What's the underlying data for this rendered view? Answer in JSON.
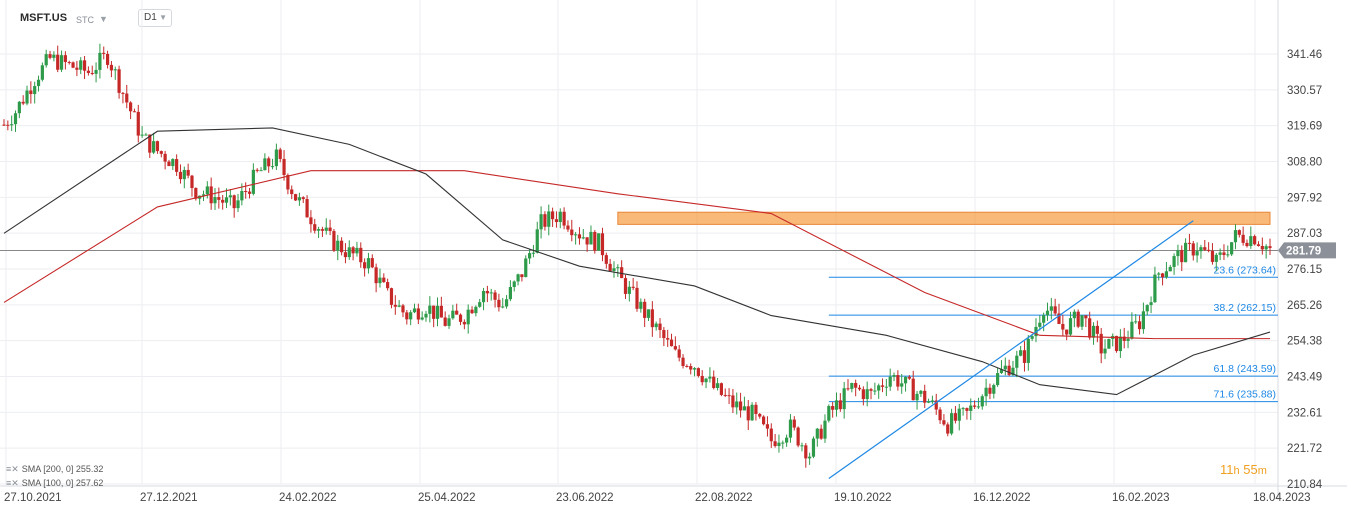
{
  "header": {
    "symbol": "MSFT.US",
    "feed": "STC",
    "timeframe": "D1"
  },
  "indicators": [
    {
      "label": "SMA [200, 0]",
      "value": "255.32",
      "color": "#c62828"
    },
    {
      "label": "SMA [100, 0]",
      "value": "257.62",
      "color": "#333333"
    }
  ],
  "timer": {
    "hours": "11",
    "h": "h",
    "minutes": "55",
    "m": "m"
  },
  "colors": {
    "up": "#2e9b4a",
    "down": "#c62828",
    "fib": "#1e88e5",
    "zone": "#f7a14b",
    "price_tag": "#8c9199"
  },
  "chart_data": {
    "type": "candlestick",
    "y_ticks": [
      "341.46",
      "330.57",
      "319.69",
      "308.80",
      "297.92",
      "287.03",
      "276.15",
      "265.26",
      "254.38",
      "243.49",
      "232.61",
      "221.72",
      "210.84"
    ],
    "x_ticks": [
      "27.10.2021",
      "27.12.2021",
      "24.02.2022",
      "25.04.2022",
      "23.06.2022",
      "22.08.2022",
      "19.10.2022",
      "16.12.2022",
      "16.02.2023",
      "18.04.2023"
    ],
    "ylim": [
      210.84,
      341.46
    ],
    "last_price": "281.79",
    "price_path": [
      [
        0,
        320
      ],
      [
        3,
        324
      ],
      [
        8,
        334
      ],
      [
        12,
        340
      ],
      [
        17,
        338
      ],
      [
        22,
        336
      ],
      [
        27,
        341
      ],
      [
        32,
        327
      ],
      [
        36,
        316
      ],
      [
        40,
        312
      ],
      [
        45,
        308
      ],
      [
        50,
        300
      ],
      [
        55,
        298
      ],
      [
        60,
        295
      ],
      [
        66,
        305
      ],
      [
        71,
        310
      ],
      [
        76,
        298
      ],
      [
        80,
        292
      ],
      [
        85,
        285
      ],
      [
        90,
        281
      ],
      [
        95,
        278
      ],
      [
        100,
        268
      ],
      [
        105,
        262
      ],
      [
        110,
        265
      ],
      [
        115,
        260
      ],
      [
        120,
        262
      ],
      [
        125,
        270
      ],
      [
        130,
        265
      ],
      [
        135,
        275
      ],
      [
        140,
        290
      ],
      [
        145,
        293
      ],
      [
        150,
        287
      ],
      [
        155,
        284
      ],
      [
        160,
        274
      ],
      [
        165,
        266
      ],
      [
        170,
        258
      ],
      [
        175,
        250
      ],
      [
        180,
        247
      ],
      [
        185,
        240
      ],
      [
        190,
        235
      ],
      [
        195,
        232
      ],
      [
        200,
        224
      ],
      [
        205,
        228
      ],
      [
        210,
        220
      ],
      [
        215,
        232
      ],
      [
        221,
        240
      ],
      [
        226,
        238
      ],
      [
        231,
        244
      ],
      [
        236,
        240
      ],
      [
        241,
        236
      ],
      [
        246,
        229
      ],
      [
        251,
        232
      ],
      [
        256,
        240
      ],
      [
        261,
        246
      ],
      [
        266,
        250
      ],
      [
        271,
        265
      ],
      [
        276,
        258
      ],
      [
        281,
        262
      ],
      [
        286,
        252
      ],
      [
        291,
        254
      ],
      [
        296,
        260
      ],
      [
        301,
        275
      ],
      [
        306,
        280
      ],
      [
        311,
        283
      ],
      [
        316,
        278
      ],
      [
        321,
        286
      ],
      [
        326,
        286
      ],
      [
        330,
        282
      ]
    ],
    "sma200": [
      [
        0,
        266
      ],
      [
        40,
        295
      ],
      [
        80,
        306
      ],
      [
        120,
        306
      ],
      [
        160,
        299
      ],
      [
        200,
        293
      ],
      [
        240,
        269
      ],
      [
        270,
        256
      ],
      [
        300,
        255
      ],
      [
        330,
        255
      ]
    ],
    "sma100": [
      [
        0,
        287
      ],
      [
        40,
        318
      ],
      [
        70,
        319
      ],
      [
        90,
        314
      ],
      [
        110,
        305
      ],
      [
        130,
        285
      ],
      [
        150,
        277
      ],
      [
        180,
        271
      ],
      [
        200,
        262
      ],
      [
        230,
        256
      ],
      [
        255,
        248
      ],
      [
        270,
        241
      ],
      [
        290,
        238
      ],
      [
        310,
        250
      ],
      [
        330,
        257
      ]
    ],
    "resistance_zone": {
      "x": [
        160,
        330
      ],
      "y": [
        289.7,
        293.4
      ]
    },
    "trendline": {
      "x": [
        215,
        310
      ],
      "y": [
        212.5,
        290.8
      ]
    },
    "fibonacci": [
      {
        "label": "23.6 (273.64)",
        "value": 273.64
      },
      {
        "label": "38.2 (262.15)",
        "value": 262.15
      },
      {
        "label": "61.8 (243.59)",
        "value": 243.59
      },
      {
        "label": "71.6 (235.88)",
        "value": 235.88
      }
    ],
    "fib_start_x": 215
  }
}
